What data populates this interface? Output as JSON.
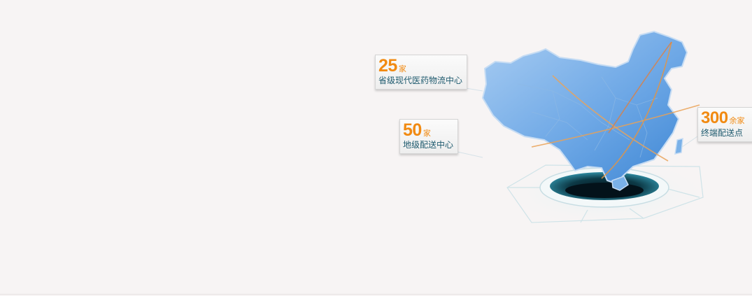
{
  "stats": [
    {
      "number": "25",
      "unit": "家",
      "label": "省级现代医药物流中心"
    },
    {
      "number": "50",
      "unit": "家",
      "label": "地级配送中心"
    },
    {
      "number": "300",
      "unit": "余家",
      "label": "终端配送点"
    }
  ],
  "colors": {
    "accent": "#f18a12",
    "text": "#1e5a6e",
    "map": "#5b9fe0"
  }
}
